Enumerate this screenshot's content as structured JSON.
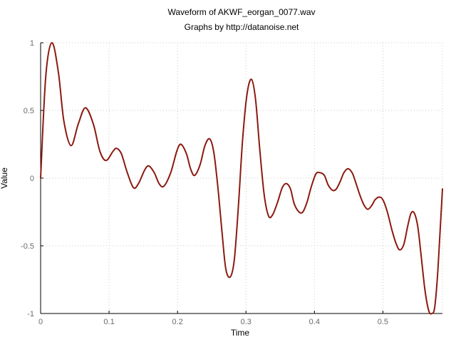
{
  "chart_data": {
    "type": "line",
    "title": "Waveform of AKWF_eorgan_0077.wav",
    "subtitle": "Graphs by http://datanoise.net",
    "xlabel": "Time",
    "ylabel": "Value",
    "xlim": [
      0,
      0.587
    ],
    "ylim": [
      -1,
      1
    ],
    "x_ticks": [
      {
        "value": 0,
        "label": "0"
      },
      {
        "value": 0.1,
        "label": "0.1"
      },
      {
        "value": 0.2,
        "label": "0.2"
      },
      {
        "value": 0.3,
        "label": "0.3"
      },
      {
        "value": 0.4,
        "label": "0.4"
      },
      {
        "value": 0.5,
        "label": "0.5"
      }
    ],
    "y_ticks": [
      {
        "value": 1,
        "label": "1"
      },
      {
        "value": 0.5,
        "label": "0.5"
      },
      {
        "value": 0,
        "label": "0"
      },
      {
        "value": -0.5,
        "label": "-0.5"
      },
      {
        "value": -1,
        "label": "-1"
      }
    ],
    "grid": true,
    "legend": "none",
    "line_color": "#8b1a10",
    "series": [
      {
        "points": [
          [
            0.0,
            0.0
          ],
          [
            0.0075,
            0.75
          ],
          [
            0.0165,
            1.0
          ],
          [
            0.026,
            0.78
          ],
          [
            0.034,
            0.42
          ],
          [
            0.0445,
            0.24
          ],
          [
            0.055,
            0.4
          ],
          [
            0.0655,
            0.52
          ],
          [
            0.077,
            0.4
          ],
          [
            0.0865,
            0.2
          ],
          [
            0.0955,
            0.13
          ],
          [
            0.106,
            0.2
          ],
          [
            0.111,
            0.22
          ],
          [
            0.118,
            0.18
          ],
          [
            0.126,
            0.05
          ],
          [
            0.1355,
            -0.07
          ],
          [
            0.143,
            -0.04
          ],
          [
            0.152,
            0.06
          ],
          [
            0.158,
            0.09
          ],
          [
            0.166,
            0.04
          ],
          [
            0.173,
            -0.04
          ],
          [
            0.18,
            -0.06
          ],
          [
            0.19,
            0.04
          ],
          [
            0.199,
            0.2
          ],
          [
            0.205,
            0.25
          ],
          [
            0.213,
            0.18
          ],
          [
            0.219,
            0.07
          ],
          [
            0.225,
            0.02
          ],
          [
            0.233,
            0.1
          ],
          [
            0.24,
            0.24
          ],
          [
            0.247,
            0.29
          ],
          [
            0.253,
            0.19
          ],
          [
            0.259,
            -0.07
          ],
          [
            0.265,
            -0.4
          ],
          [
            0.2705,
            -0.67
          ],
          [
            0.277,
            -0.73
          ],
          [
            0.283,
            -0.6
          ],
          [
            0.289,
            -0.2
          ],
          [
            0.295,
            0.28
          ],
          [
            0.3015,
            0.62
          ],
          [
            0.308,
            0.73
          ],
          [
            0.314,
            0.58
          ],
          [
            0.32,
            0.22
          ],
          [
            0.3265,
            -0.12
          ],
          [
            0.333,
            -0.28
          ],
          [
            0.339,
            -0.27
          ],
          [
            0.346,
            -0.18
          ],
          [
            0.353,
            -0.07
          ],
          [
            0.359,
            -0.04
          ],
          [
            0.365,
            -0.08
          ],
          [
            0.3705,
            -0.19
          ],
          [
            0.3775,
            -0.25
          ],
          [
            0.383,
            -0.25
          ],
          [
            0.389,
            -0.18
          ],
          [
            0.395,
            -0.07
          ],
          [
            0.402,
            0.03
          ],
          [
            0.408,
            0.04
          ],
          [
            0.4145,
            0.02
          ],
          [
            0.42,
            -0.05
          ],
          [
            0.4265,
            -0.09
          ],
          [
            0.432,
            -0.08
          ],
          [
            0.438,
            -0.02
          ],
          [
            0.443,
            0.04
          ],
          [
            0.449,
            0.07
          ],
          [
            0.455,
            0.04
          ],
          [
            0.4595,
            -0.02
          ],
          [
            0.466,
            -0.12
          ],
          [
            0.4725,
            -0.2
          ],
          [
            0.478,
            -0.23
          ],
          [
            0.484,
            -0.2
          ],
          [
            0.4885,
            -0.16
          ],
          [
            0.4945,
            -0.14
          ],
          [
            0.5,
            -0.16
          ],
          [
            0.5065,
            -0.25
          ],
          [
            0.513,
            -0.38
          ],
          [
            0.519,
            -0.48
          ],
          [
            0.5245,
            -0.53
          ],
          [
            0.5305,
            -0.49
          ],
          [
            0.536,
            -0.36
          ],
          [
            0.541,
            -0.26
          ],
          [
            0.546,
            -0.26
          ],
          [
            0.551,
            -0.36
          ],
          [
            0.556,
            -0.58
          ],
          [
            0.5615,
            -0.83
          ],
          [
            0.567,
            -0.98
          ],
          [
            0.5715,
            -1.0
          ],
          [
            0.5755,
            -0.96
          ],
          [
            0.5795,
            -0.74
          ],
          [
            0.583,
            -0.44
          ],
          [
            0.587,
            -0.08
          ]
        ]
      }
    ]
  }
}
